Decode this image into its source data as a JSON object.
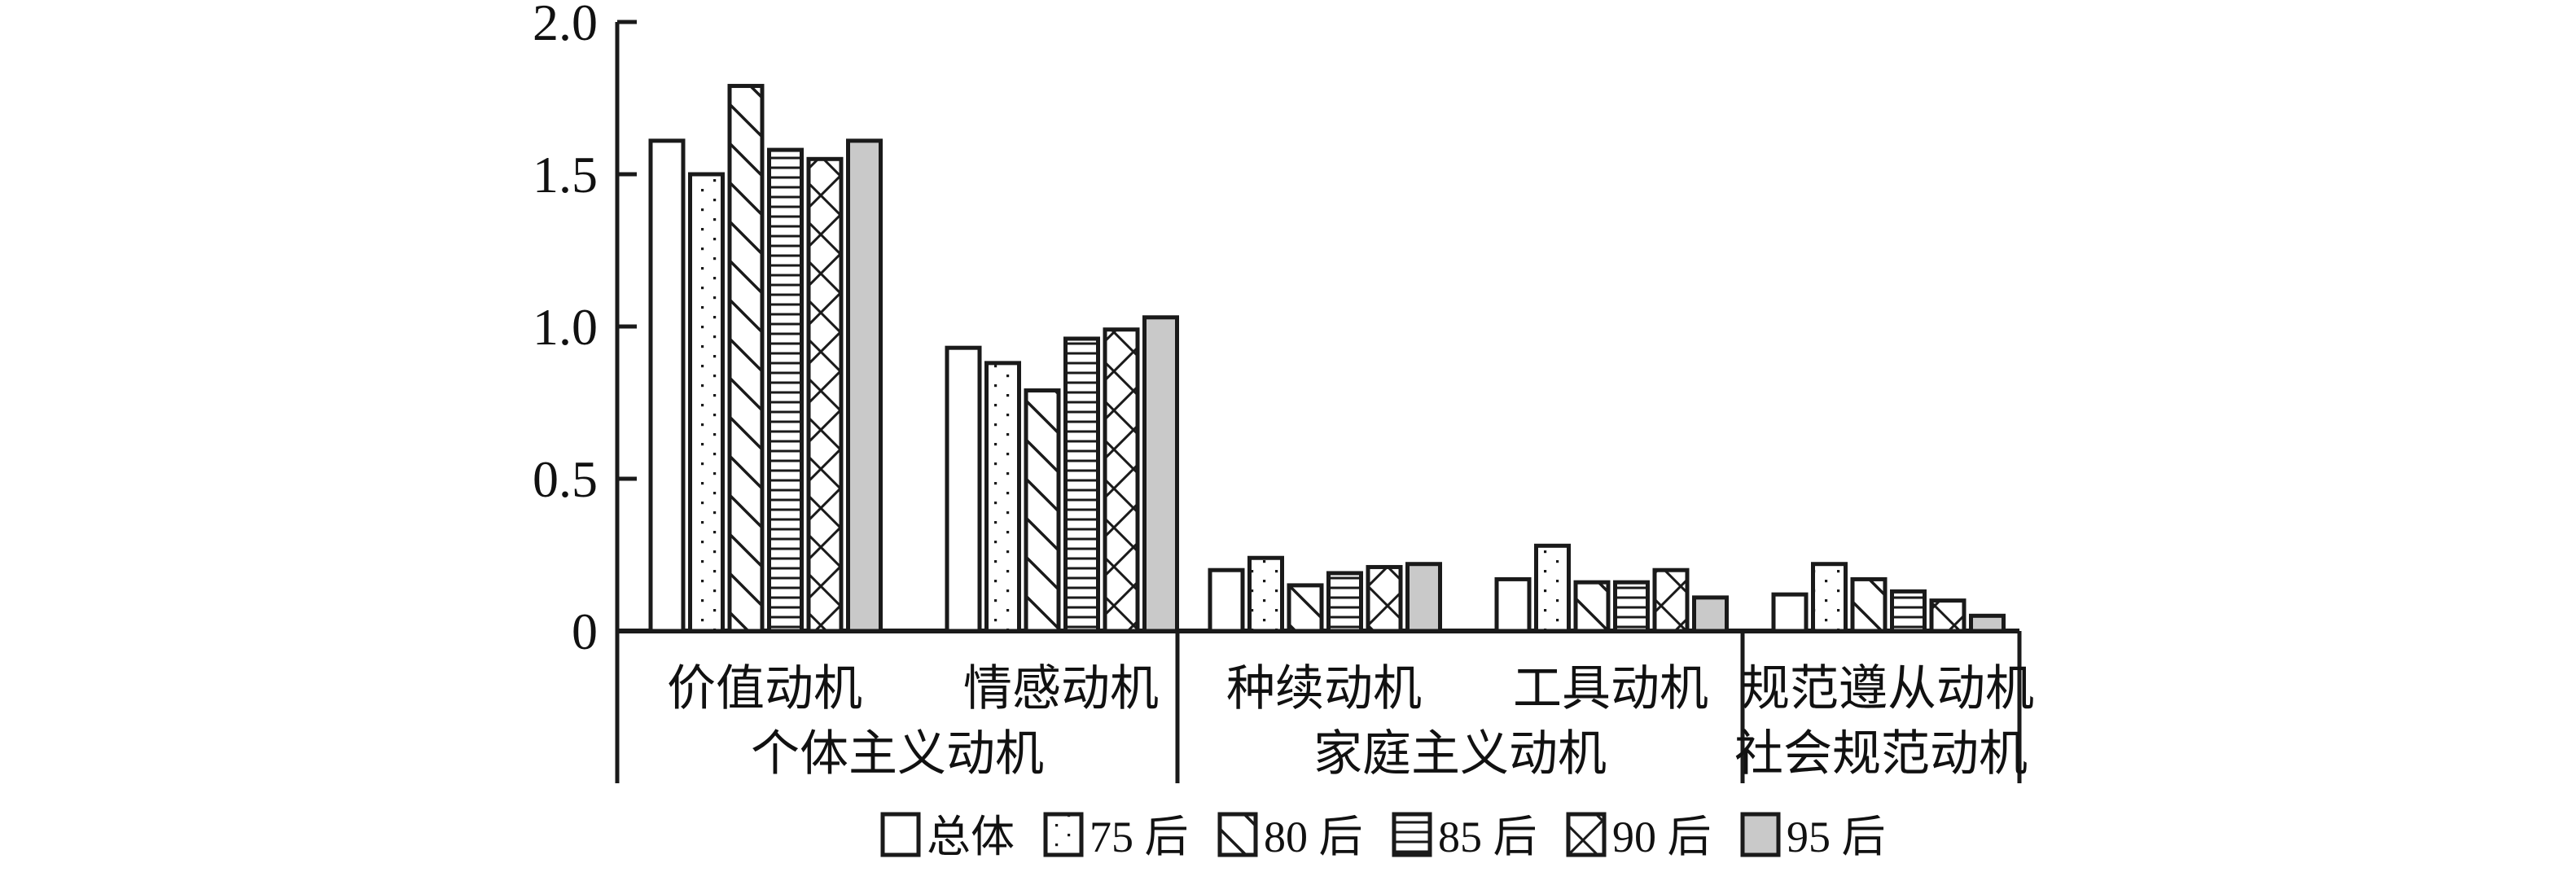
{
  "chart_data": {
    "type": "bar",
    "title": "",
    "xlabel": "",
    "ylabel": "",
    "ylim": [
      0,
      2.0
    ],
    "yticks": [
      0,
      0.5,
      1.0,
      1.5,
      2.0
    ],
    "ytick_labels": [
      "0",
      "0.5",
      "1.0",
      "1.5",
      "2.0"
    ],
    "grid": false,
    "legend_position": "bottom",
    "categories": [
      "价值动机",
      "情感动机",
      "种续动机",
      "工具动机",
      "规范遵从动机"
    ],
    "category_groups": [
      {
        "label": "个体主义动机",
        "spans": [
          "价值动机",
          "情感动机"
        ]
      },
      {
        "label": "家庭主义动机",
        "spans": [
          "种续动机",
          "工具动机"
        ]
      },
      {
        "label": "社会规范动机",
        "spans": [
          "规范遵从动机"
        ]
      }
    ],
    "series": [
      {
        "name": "总体",
        "pattern": "plain",
        "values": [
          1.61,
          0.93,
          0.2,
          0.17,
          0.12
        ]
      },
      {
        "name": "75 后",
        "pattern": "dots",
        "values": [
          1.5,
          0.88,
          0.24,
          0.28,
          0.22
        ]
      },
      {
        "name": "80 后",
        "pattern": "diagonal",
        "values": [
          1.79,
          0.79,
          0.15,
          0.16,
          0.17
        ]
      },
      {
        "name": "85 后",
        "pattern": "hlines",
        "values": [
          1.58,
          0.96,
          0.19,
          0.16,
          0.13
        ]
      },
      {
        "name": "90 后",
        "pattern": "crosshatch",
        "values": [
          1.55,
          0.99,
          0.21,
          0.2,
          0.1
        ]
      },
      {
        "name": "95 后",
        "pattern": "gray",
        "values": [
          1.61,
          1.03,
          0.22,
          0.11,
          0.05
        ]
      }
    ],
    "colors": {
      "background": "#ffffff",
      "axis": "#1a1a1a",
      "bar_stroke": "#1a1a1a",
      "bar_fill_plain": "#ffffff",
      "bar_fill_gray": "#c9c9c9",
      "text": "#111111"
    }
  }
}
